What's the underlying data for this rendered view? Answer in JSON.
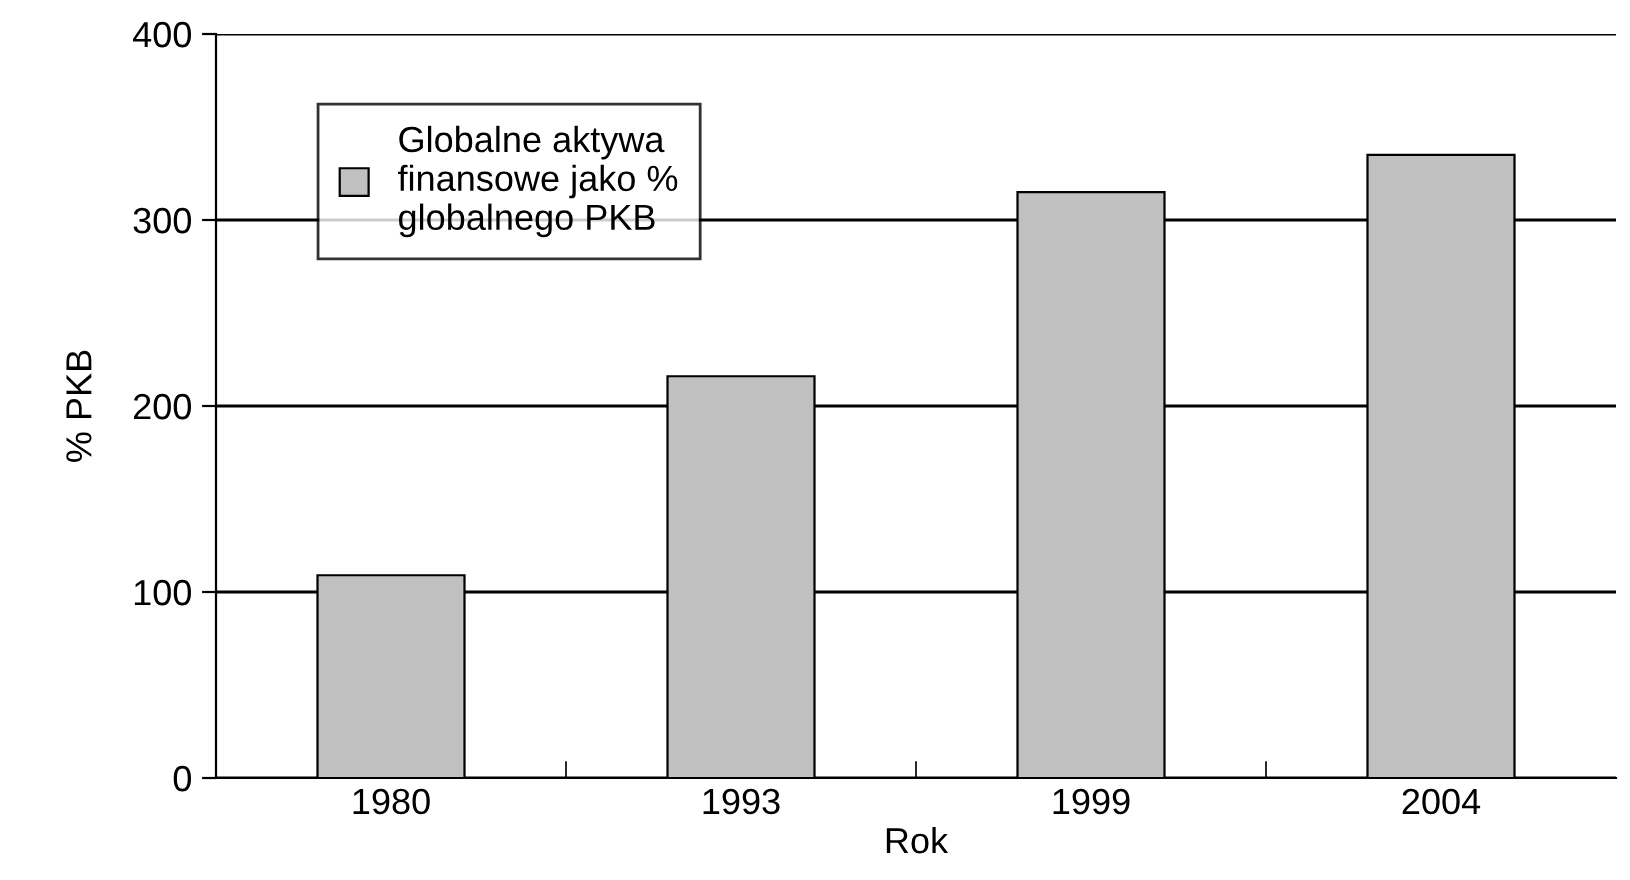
{
  "chart_data": {
    "type": "bar",
    "xlabel": "Rok",
    "ylabel": "% PKB",
    "categories": [
      "1980",
      "1993",
      "1999",
      "2004"
    ],
    "series": [
      {
        "name": "Globalne aktywa\nfinansowe jako %\nglobalnego PKB",
        "color": "#c0c0c0",
        "values": [
          109,
          216,
          315,
          335
        ]
      }
    ],
    "ylim": [
      0,
      400
    ],
    "yticks": [
      0,
      100,
      200,
      300,
      400
    ],
    "grid": "y",
    "legend": "top left"
  }
}
